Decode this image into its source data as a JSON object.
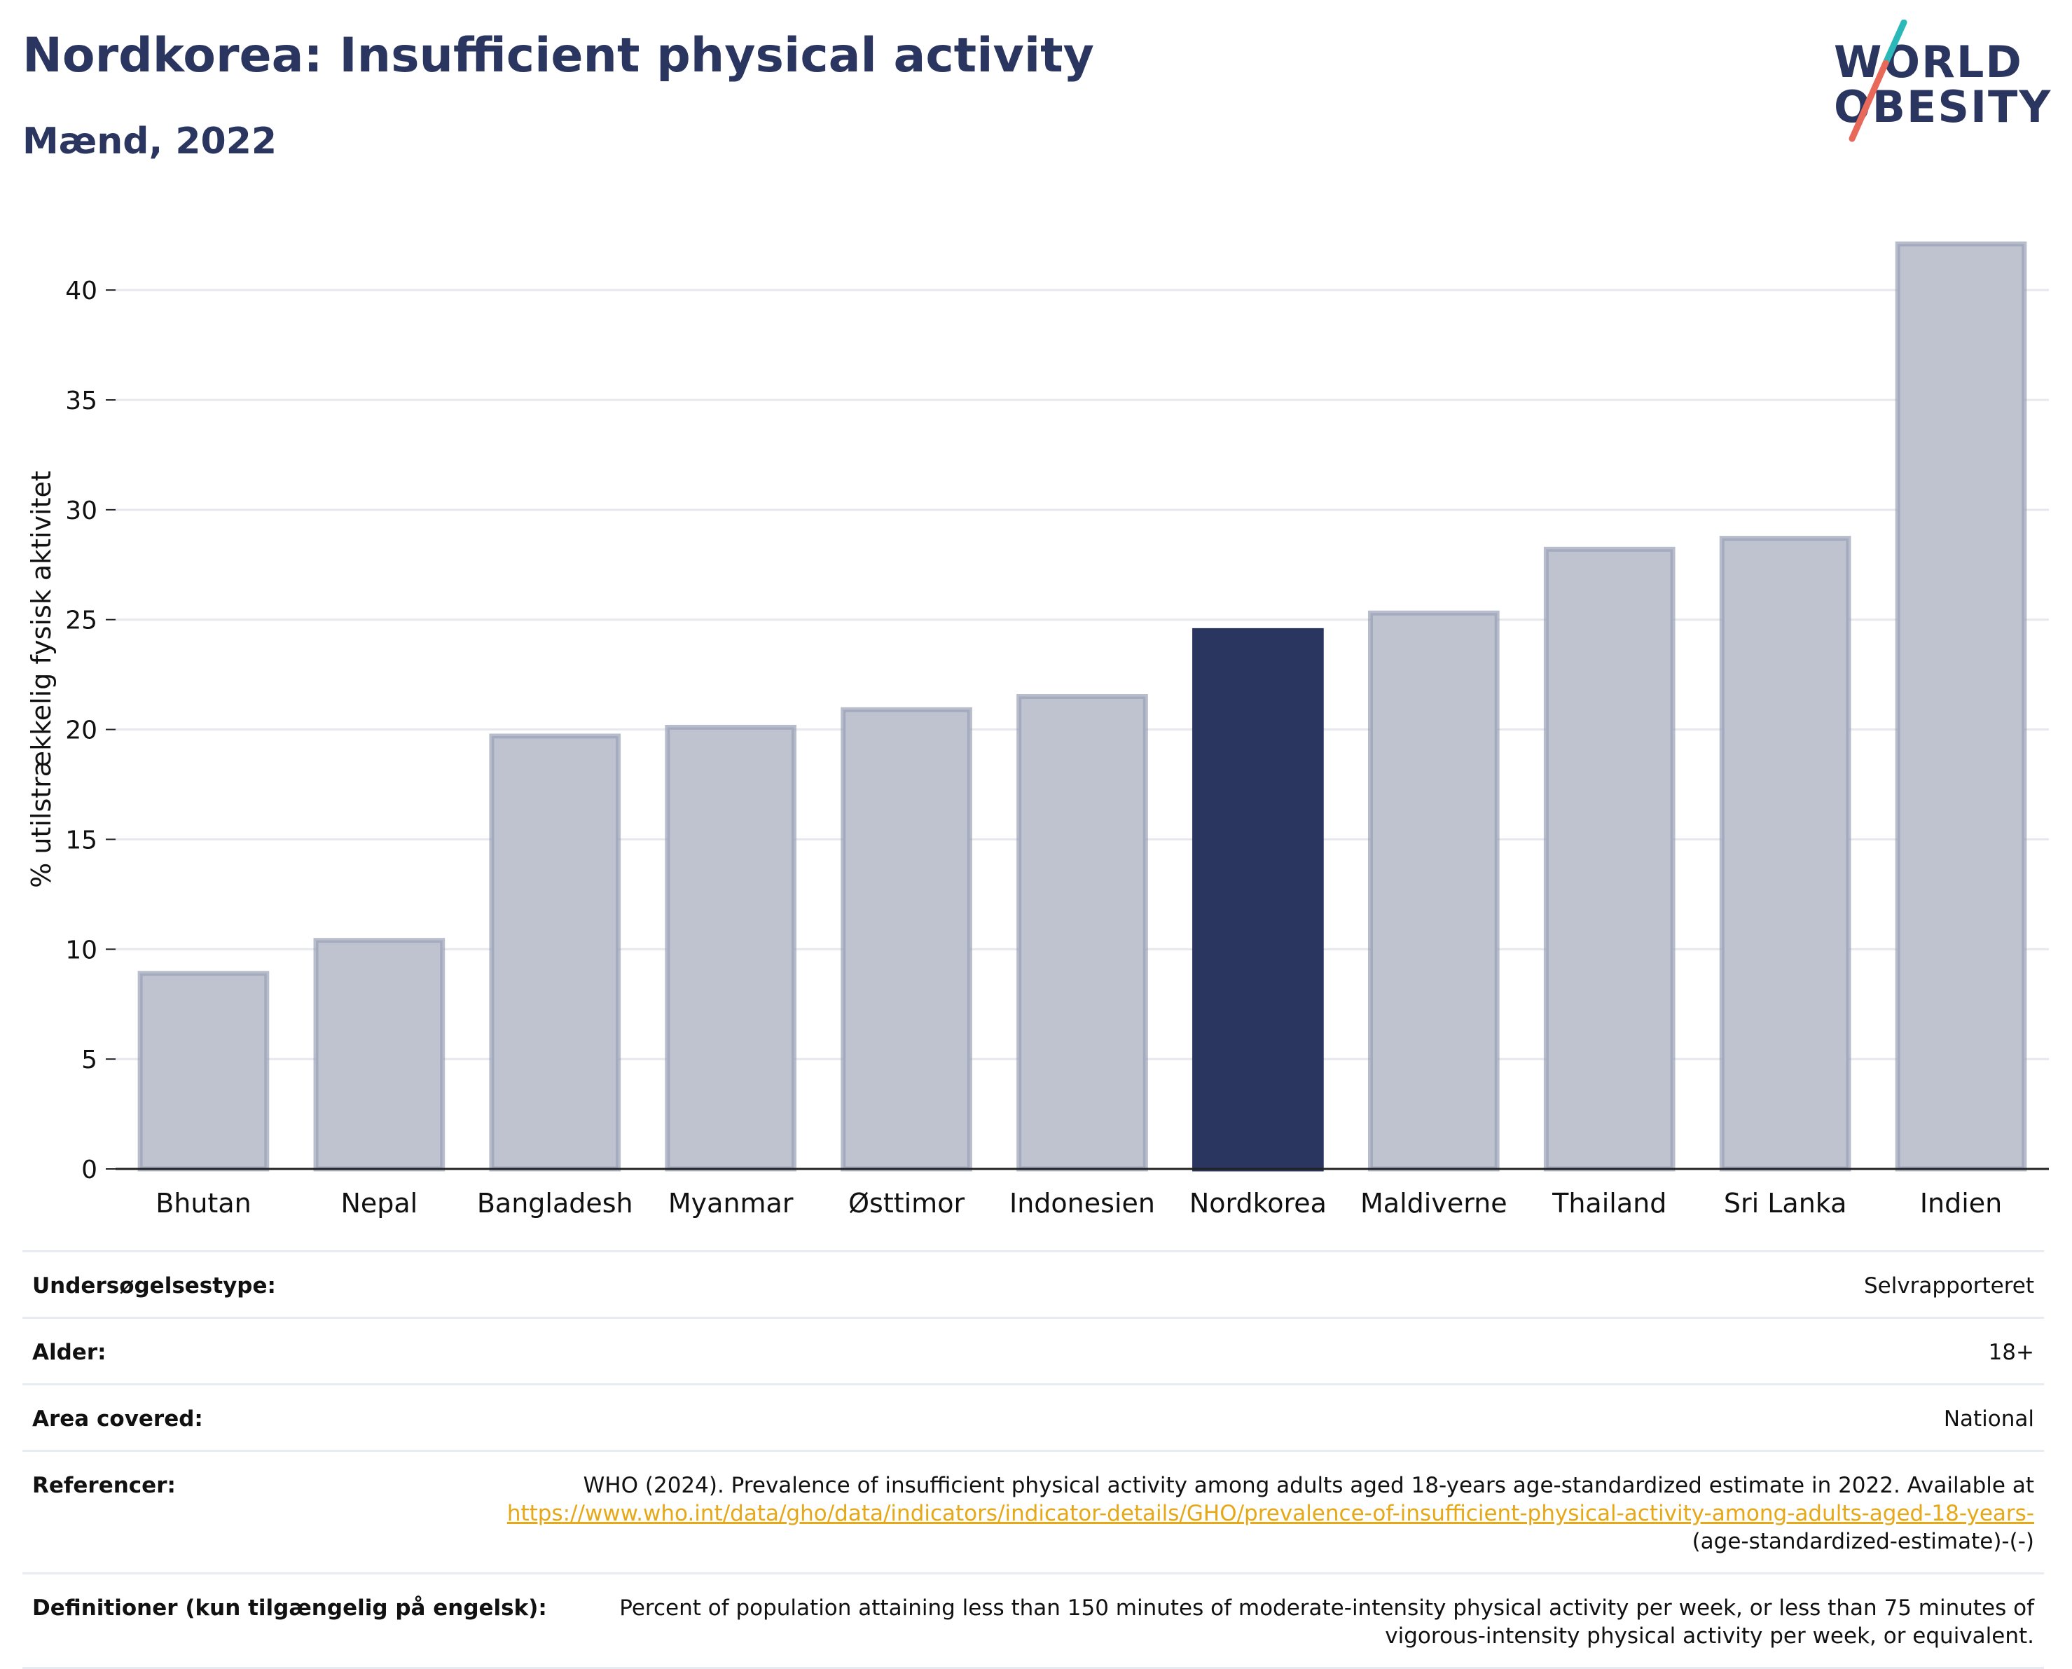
{
  "header": {
    "title": "Nordkorea: Insufficient physical activity",
    "subtitle": "Mænd, 2022"
  },
  "logo": {
    "line1": "WORLD",
    "line2": "OBESITY",
    "colors": {
      "text": "#2a3560",
      "teal": "#2bb8b8",
      "coral": "#e8685a"
    }
  },
  "colors": {
    "highlight": "#2a3560",
    "bar": "#bfc3cf",
    "bar_edge": "#9aa1b6",
    "grid": "#e6e8ee",
    "axis": "#222222"
  },
  "chart_data": {
    "type": "bar",
    "ylabel": "% utilstrækkelig fysisk aktivitet",
    "categories": [
      "Bhutan",
      "Nepal",
      "Bangladesh",
      "Myanmar",
      "Østtimor",
      "Indonesien",
      "Nordkorea",
      "Maldiverne",
      "Thailand",
      "Sri Lanka",
      "Indien"
    ],
    "values": [
      8.9,
      10.4,
      19.7,
      20.1,
      20.9,
      21.5,
      24.5,
      25.3,
      28.2,
      28.7,
      42.1
    ],
    "highlight": "Nordkorea",
    "ylim": [
      0,
      43
    ],
    "yticks": [
      0,
      5,
      10,
      15,
      20,
      25,
      30,
      35,
      40
    ],
    "grid": true
  },
  "info_table": [
    {
      "label": "Undersøgelsestype:",
      "value": "Selvrapporteret"
    },
    {
      "label": "Alder:",
      "value": "18+"
    },
    {
      "label": "Area covered:",
      "value": "National"
    },
    {
      "label": "Referencer:",
      "value_prefix": "WHO (2024). Prevalence of insufficient physical activity among adults aged 18-years age-standardized estimate in 2022. Available at",
      "link": "https://www.who.int/data/gho/data/indicators/indicator-details/GHO/prevalence-of-insufficient-physical-activity-among-adults-aged-18-years-",
      "value_suffix": "(age-standardized-estimate)-(-)"
    },
    {
      "label": "Definitioner (kun tilgængelig på engelsk):",
      "value": "Percent of population attaining less than 150 minutes of moderate-intensity physical activity per week, or less than 75 minutes of vigorous-intensity physical activity per week, or equivalent."
    }
  ]
}
